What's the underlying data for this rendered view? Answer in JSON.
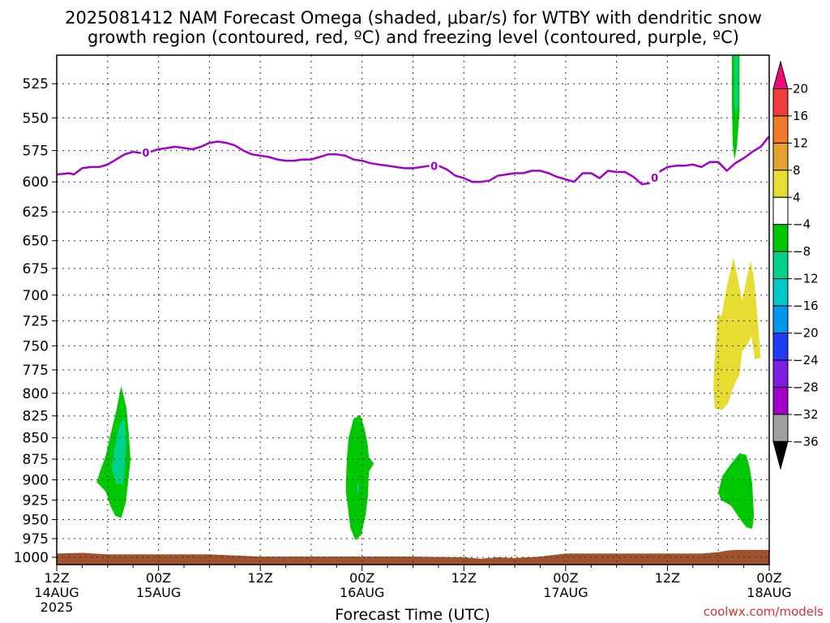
{
  "title": {
    "line1": "2025081412 NAM Forecast Omega (shaded, μbar/s) for WTBY with dendritic snow",
    "line2": "growth region (contoured, red, ºC) and freezing level (contoured, purple, ºC)"
  },
  "credit": "coolwx.com/models",
  "colors": {
    "freezing_line": "#a000c8",
    "ground": "#a0522d",
    "credit": "#e03030"
  },
  "chart_data": {
    "type": "time-height cross-section",
    "xlabel": "Forecast Time (UTC)",
    "ylabel": "",
    "x_range_hours": [
      0,
      84
    ],
    "x_ticks": [
      {
        "hour": 0,
        "lines": [
          "12Z",
          "14AUG",
          "2025"
        ]
      },
      {
        "hour": 12,
        "lines": [
          "00Z",
          "15AUG"
        ]
      },
      {
        "hour": 24,
        "lines": [
          "12Z"
        ]
      },
      {
        "hour": 36,
        "lines": [
          "00Z",
          "16AUG"
        ]
      },
      {
        "hour": 48,
        "lines": [
          "12Z"
        ]
      },
      {
        "hour": 60,
        "lines": [
          "00Z",
          "17AUG"
        ]
      },
      {
        "hour": 72,
        "lines": [
          "12Z"
        ]
      },
      {
        "hour": 84,
        "lines": [
          "00Z",
          "18AUG"
        ]
      }
    ],
    "y_ticks_hpa": [
      525,
      550,
      575,
      600,
      625,
      650,
      675,
      700,
      725,
      750,
      775,
      800,
      825,
      850,
      875,
      900,
      925,
      950,
      975,
      1000
    ],
    "y_range_hpa": [
      505,
      1010
    ],
    "y_scale": "log-pressure",
    "grid": "dotted",
    "colorbar": {
      "labels": [
        "20",
        "16",
        "12",
        "8",
        "4",
        "−4",
        "−8",
        "−12",
        "−16",
        "−20",
        "−24",
        "−28",
        "−32",
        "−36"
      ],
      "levels": [
        {
          "color": "#f20a78",
          "range": "> 20"
        },
        {
          "color": "#f03c3c",
          "range": "16 to 20"
        },
        {
          "color": "#f07a28",
          "range": "12 to 16"
        },
        {
          "color": "#e6a032",
          "range": "8 to 12"
        },
        {
          "color": "#e6dc32",
          "range": "4 to 8"
        },
        {
          "color": "#ffffff",
          "range": "-4 to 4"
        },
        {
          "color": "#00c800",
          "range": "-8 to -4"
        },
        {
          "color": "#00d28c",
          "range": "-12 to -8"
        },
        {
          "color": "#00c8c8",
          "range": "-16 to -12"
        },
        {
          "color": "#0096f0",
          "range": "-20 to -16"
        },
        {
          "color": "#1e3cf0",
          "range": "-24 to -20"
        },
        {
          "color": "#7d1ee6",
          "range": "-28 to -24"
        },
        {
          "color": "#a000c8",
          "range": "-32 to -28"
        },
        {
          "color": "#a0a0a0",
          "range": "-36 to -32"
        },
        {
          "color": "#000000",
          "range": "< -36"
        }
      ]
    },
    "freezing_level": {
      "label": "0",
      "label_hours": [
        10.5,
        44.5,
        70.5
      ],
      "points": [
        [
          0,
          594
        ],
        [
          1.5,
          593
        ],
        [
          2,
          594
        ],
        [
          3,
          589
        ],
        [
          4,
          588
        ],
        [
          5,
          588
        ],
        [
          6,
          586
        ],
        [
          7,
          582
        ],
        [
          8,
          578
        ],
        [
          9,
          576
        ],
        [
          10,
          577
        ],
        [
          11,
          576
        ],
        [
          12,
          574
        ],
        [
          13,
          573
        ],
        [
          14,
          572
        ],
        [
          15,
          573
        ],
        [
          16,
          574
        ],
        [
          17,
          572
        ],
        [
          18,
          569
        ],
        [
          19,
          568
        ],
        [
          20,
          569
        ],
        [
          21,
          571
        ],
        [
          22,
          575
        ],
        [
          23,
          578
        ],
        [
          24,
          579
        ],
        [
          25,
          580
        ],
        [
          26,
          582
        ],
        [
          27,
          583
        ],
        [
          28,
          583
        ],
        [
          29,
          582
        ],
        [
          30,
          582
        ],
        [
          31,
          580
        ],
        [
          32,
          578
        ],
        [
          33,
          578
        ],
        [
          34,
          579
        ],
        [
          35,
          582
        ],
        [
          36,
          583
        ],
        [
          37,
          585
        ],
        [
          38,
          586
        ],
        [
          39,
          587
        ],
        [
          40,
          588
        ],
        [
          41,
          589
        ],
        [
          42,
          589
        ],
        [
          43,
          588
        ],
        [
          44,
          587
        ],
        [
          45,
          587
        ],
        [
          46,
          590
        ],
        [
          47,
          595
        ],
        [
          48,
          597
        ],
        [
          49,
          600
        ],
        [
          50,
          600
        ],
        [
          51,
          599
        ],
        [
          52,
          595
        ],
        [
          53,
          594
        ],
        [
          54,
          593
        ],
        [
          55,
          593
        ],
        [
          56,
          591
        ],
        [
          57,
          591
        ],
        [
          58,
          593
        ],
        [
          59,
          596
        ],
        [
          60,
          598
        ],
        [
          61,
          600
        ],
        [
          62,
          593
        ],
        [
          63,
          593
        ],
        [
          64,
          597
        ],
        [
          65,
          591
        ],
        [
          66,
          592
        ],
        [
          67,
          592
        ],
        [
          68,
          596
        ],
        [
          69,
          602
        ],
        [
          70,
          601
        ],
        [
          71,
          592
        ],
        [
          72,
          588
        ],
        [
          73,
          587
        ],
        [
          74,
          587
        ],
        [
          75,
          586
        ],
        [
          76,
          588
        ],
        [
          77,
          584
        ],
        [
          78,
          584
        ],
        [
          79,
          591
        ],
        [
          80,
          585
        ],
        [
          81,
          581
        ],
        [
          82,
          576
        ],
        [
          83,
          572
        ],
        [
          84,
          564
        ]
      ]
    },
    "omega_shading": [
      {
        "level": "-8 to -4",
        "color": "#00c800",
        "outline": [
          [
            4.7,
            903
          ],
          [
            5.1,
            890
          ],
          [
            5.8,
            870
          ],
          [
            6.3,
            848
          ],
          [
            7.0,
            820
          ],
          [
            7.6,
            792
          ],
          [
            8.2,
            815
          ],
          [
            8.5,
            845
          ],
          [
            8.7,
            875
          ],
          [
            8.4,
            905
          ],
          [
            8.1,
            930
          ],
          [
            7.6,
            948
          ],
          [
            6.9,
            945
          ],
          [
            6.3,
            932
          ],
          [
            5.8,
            915
          ],
          [
            5.2,
            908
          ]
        ]
      },
      {
        "level": "-12 to -8",
        "color": "#00d28c",
        "outline": [
          [
            6.5,
            888
          ],
          [
            6.8,
            862
          ],
          [
            7.4,
            835
          ],
          [
            8.0,
            828
          ],
          [
            8.2,
            855
          ],
          [
            8.0,
            890
          ],
          [
            7.8,
            905
          ],
          [
            7.0,
            905
          ],
          [
            6.8,
            896
          ]
        ]
      },
      {
        "level": "-8 to -4",
        "color": "#00c800",
        "outline": [
          [
            34.1,
            905
          ],
          [
            34.2,
            875
          ],
          [
            34.4,
            850
          ],
          [
            35.0,
            828
          ],
          [
            35.8,
            824
          ],
          [
            36.3,
            840
          ],
          [
            36.7,
            860
          ],
          [
            36.8,
            873
          ],
          [
            37.4,
            880
          ],
          [
            36.8,
            890
          ],
          [
            36.7,
            920
          ],
          [
            36.4,
            945
          ],
          [
            35.9,
            970
          ],
          [
            35.2,
            977
          ],
          [
            34.6,
            960
          ],
          [
            34.3,
            932
          ],
          [
            34.1,
            915
          ]
        ]
      },
      {
        "level": "-12 to -8",
        "color": "#00c8c8",
        "outline": [
          [
            35.45,
            905
          ],
          [
            35.6,
            903
          ],
          [
            35.65,
            915
          ],
          [
            35.5,
            918
          ]
        ]
      },
      {
        "level": "-8 to -4",
        "color": "#00c800",
        "outline": [
          [
            78.0,
            915
          ],
          [
            78.5,
            895
          ],
          [
            79.4,
            882
          ],
          [
            80.5,
            868
          ],
          [
            81.3,
            870
          ],
          [
            81.7,
            885
          ],
          [
            82.0,
            905
          ],
          [
            82.1,
            925
          ],
          [
            82.2,
            945
          ],
          [
            82.0,
            962
          ],
          [
            81.3,
            960
          ],
          [
            80.6,
            950
          ],
          [
            80.0,
            940
          ],
          [
            79.5,
            932
          ],
          [
            78.8,
            928
          ],
          [
            78.3,
            925
          ]
        ]
      },
      {
        "level": "4 to 8",
        "color": "#e6dc32",
        "outline": [
          [
            77.4,
            795
          ],
          [
            77.6,
            760
          ],
          [
            77.8,
            735
          ],
          [
            77.9,
            718
          ],
          [
            78.4,
            720
          ],
          [
            78.8,
            700
          ],
          [
            79.4,
            678
          ],
          [
            79.8,
            665
          ],
          [
            80.2,
            680
          ],
          [
            80.8,
            705
          ],
          [
            81.2,
            690
          ],
          [
            81.8,
            668
          ],
          [
            82.2,
            684
          ],
          [
            82.7,
            730
          ],
          [
            83.0,
            762
          ],
          [
            82.3,
            764
          ],
          [
            81.9,
            740
          ],
          [
            81.5,
            748
          ],
          [
            80.8,
            756
          ],
          [
            80.5,
            780
          ],
          [
            79.7,
            795
          ],
          [
            79.2,
            810
          ],
          [
            78.5,
            818
          ],
          [
            77.6,
            817
          ]
        ]
      },
      {
        "level": "-8 to -4",
        "color": "#00c800",
        "outline": [
          [
            79.6,
            505
          ],
          [
            80.5,
            505
          ],
          [
            80.5,
            545
          ],
          [
            80.2,
            572
          ],
          [
            79.9,
            582
          ],
          [
            79.7,
            570
          ],
          [
            79.6,
            540
          ]
        ]
      },
      {
        "level": "-12 to -8",
        "color": "#00d28c",
        "outline": [
          [
            79.9,
            505
          ],
          [
            80.3,
            505
          ],
          [
            80.3,
            540
          ],
          [
            80.1,
            548
          ],
          [
            79.9,
            540
          ]
        ]
      }
    ],
    "ground": {
      "color": "#a0522d",
      "top_hpa": [
        [
          0,
          995
        ],
        [
          3,
          994
        ],
        [
          6,
          996
        ],
        [
          12,
          996
        ],
        [
          18,
          996
        ],
        [
          24,
          999
        ],
        [
          30,
          999
        ],
        [
          36,
          999
        ],
        [
          42,
          999
        ],
        [
          48,
          1000
        ],
        [
          50,
          1002
        ],
        [
          52,
          1000
        ],
        [
          54,
          1001
        ],
        [
          57,
          999
        ],
        [
          60,
          995
        ],
        [
          66,
          995
        ],
        [
          72,
          995
        ],
        [
          76,
          995
        ],
        [
          78,
          993
        ],
        [
          79,
          991
        ],
        [
          80,
          990
        ],
        [
          84,
          990
        ]
      ]
    }
  }
}
